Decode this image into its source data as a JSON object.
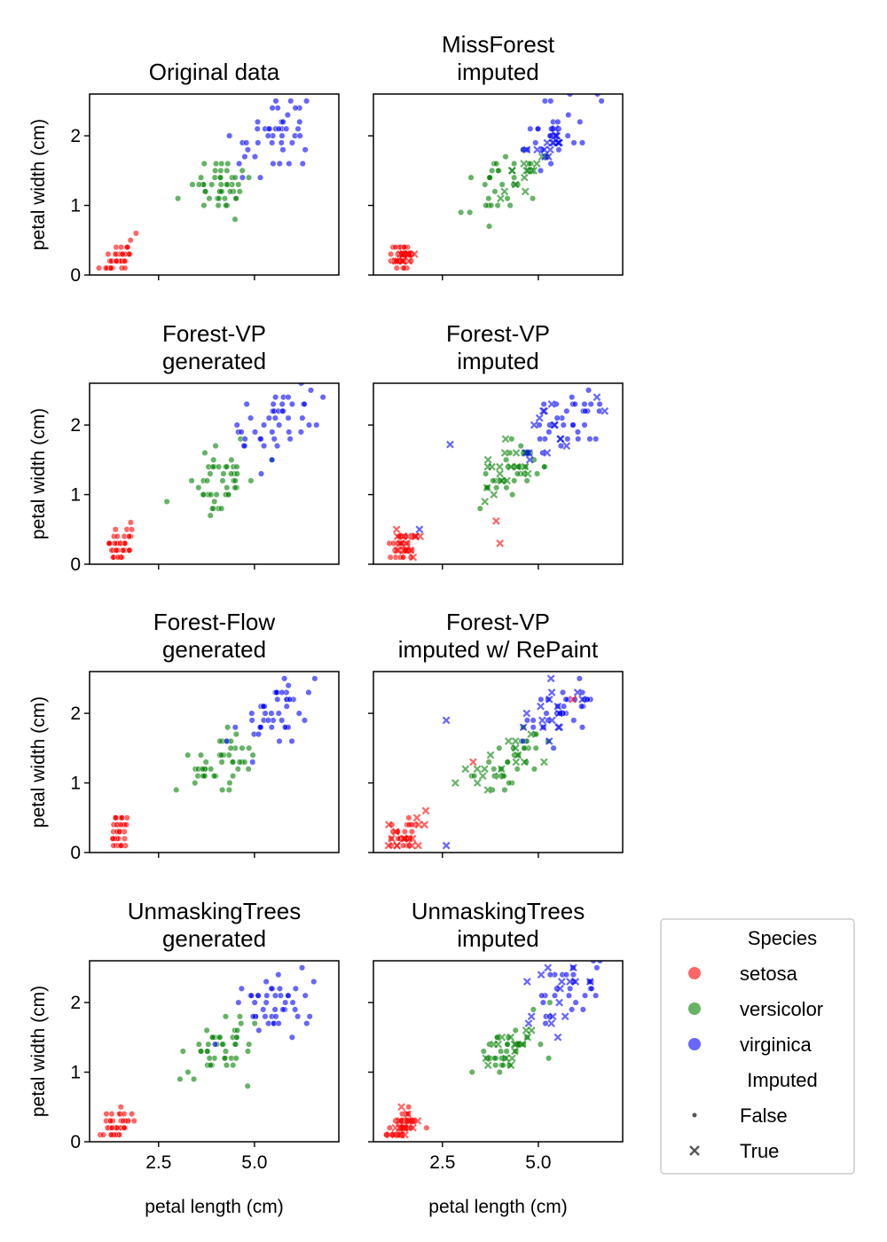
{
  "figure": {
    "axis_labels": {
      "x": "petal length (cm)",
      "y": "petal width (cm)"
    },
    "colors": {
      "setosa": "#ff0000",
      "versicolor": "#008000",
      "virginica": "#0000ff"
    }
  },
  "legend": {
    "species_title": "Species",
    "species": [
      {
        "name": "setosa",
        "color": "#ff0000"
      },
      {
        "name": "versicolor",
        "color": "#008000"
      },
      {
        "name": "virginica",
        "color": "#0000ff"
      }
    ],
    "imputed_title": "Imputed",
    "imputed": [
      {
        "name": "False",
        "marker": "dot"
      },
      {
        "name": "True",
        "marker": "x"
      }
    ]
  },
  "chart_data": [
    {
      "type": "scatter",
      "title": "Original data",
      "xlabel": "",
      "ylabel": "petal width (cm)",
      "xlim": [
        0.7,
        7.2
      ],
      "ylim": [
        0,
        2.6
      ],
      "xticks": [
        2.5,
        5.0
      ],
      "yticks": [
        0,
        1,
        2
      ],
      "clusters": [
        {
          "species": "setosa",
          "imputed": false,
          "n": 42,
          "cx": 1.45,
          "sx": 0.2,
          "cy": 0.25,
          "sy": 0.12,
          "seed": 11
        },
        {
          "species": "versicolor",
          "imputed": false,
          "n": 45,
          "cx": 4.2,
          "sx": 0.45,
          "cy": 1.3,
          "sy": 0.2,
          "seed": 12
        },
        {
          "species": "virginica",
          "imputed": false,
          "n": 45,
          "cx": 5.5,
          "sx": 0.5,
          "cy": 2.0,
          "sy": 0.25,
          "seed": 13
        }
      ]
    },
    {
      "type": "scatter",
      "title": "MissForest\nimputed",
      "xlabel": "",
      "ylabel": "",
      "xlim": [
        0.7,
        7.2
      ],
      "ylim": [
        0,
        2.6
      ],
      "xticks": [
        2.5,
        5.0
      ],
      "yticks": [
        0,
        1,
        2
      ],
      "clusters": [
        {
          "species": "setosa",
          "imputed": false,
          "n": 30,
          "cx": 1.45,
          "sx": 0.18,
          "cy": 0.25,
          "sy": 0.1,
          "seed": 21
        },
        {
          "species": "setosa",
          "imputed": true,
          "n": 14,
          "cx": 1.5,
          "sx": 0.12,
          "cy": 0.25,
          "sy": 0.06,
          "seed": 22
        },
        {
          "species": "versicolor",
          "imputed": false,
          "n": 32,
          "cx": 4.2,
          "sx": 0.45,
          "cy": 1.3,
          "sy": 0.2,
          "seed": 23
        },
        {
          "species": "versicolor",
          "imputed": true,
          "n": 14,
          "cx": 4.5,
          "sx": 0.3,
          "cy": 1.4,
          "sy": 0.1,
          "seed": 24
        },
        {
          "species": "virginica",
          "imputed": false,
          "n": 30,
          "cx": 5.6,
          "sx": 0.55,
          "cy": 2.1,
          "sy": 0.25,
          "seed": 25
        },
        {
          "species": "virginica",
          "imputed": true,
          "n": 16,
          "cx": 5.3,
          "sx": 0.3,
          "cy": 1.95,
          "sy": 0.12,
          "seed": 26
        }
      ]
    },
    {
      "type": "scatter",
      "title": "Forest-VP\ngenerated",
      "xlabel": "",
      "ylabel": "petal width (cm)",
      "xlim": [
        0.7,
        7.2
      ],
      "ylim": [
        0,
        2.6
      ],
      "xticks": [
        2.5,
        5.0
      ],
      "yticks": [
        0,
        1,
        2
      ],
      "clusters": [
        {
          "species": "setosa",
          "imputed": false,
          "n": 42,
          "cx": 1.45,
          "sx": 0.2,
          "cy": 0.25,
          "sy": 0.12,
          "seed": 31
        },
        {
          "species": "versicolor",
          "imputed": false,
          "n": 45,
          "cx": 4.1,
          "sx": 0.5,
          "cy": 1.25,
          "sy": 0.22,
          "seed": 32
        },
        {
          "species": "virginica",
          "imputed": false,
          "n": 45,
          "cx": 5.6,
          "sx": 0.55,
          "cy": 2.0,
          "sy": 0.25,
          "seed": 33
        }
      ]
    },
    {
      "type": "scatter",
      "title": "Forest-VP\nimputed",
      "xlabel": "",
      "ylabel": "",
      "xlim": [
        0.7,
        7.2
      ],
      "ylim": [
        0,
        2.6
      ],
      "xticks": [
        2.5,
        5.0
      ],
      "yticks": [
        0,
        1,
        2
      ],
      "clusters": [
        {
          "species": "setosa",
          "imputed": false,
          "n": 30,
          "cx": 1.45,
          "sx": 0.2,
          "cy": 0.25,
          "sy": 0.12,
          "seed": 41
        },
        {
          "species": "setosa",
          "imputed": true,
          "n": 16,
          "cx": 1.45,
          "sx": 0.25,
          "cy": 0.25,
          "sy": 0.12,
          "seed": 42
        },
        {
          "species": "versicolor",
          "imputed": false,
          "n": 32,
          "cx": 4.2,
          "sx": 0.45,
          "cy": 1.3,
          "sy": 0.2,
          "seed": 43
        },
        {
          "species": "versicolor",
          "imputed": true,
          "n": 18,
          "cx": 4.1,
          "sx": 0.5,
          "cy": 1.3,
          "sy": 0.2,
          "seed": 44
        },
        {
          "species": "virginica",
          "imputed": false,
          "n": 32,
          "cx": 5.7,
          "sx": 0.5,
          "cy": 2.05,
          "sy": 0.22,
          "seed": 45
        },
        {
          "species": "virginica",
          "imputed": true,
          "n": 16,
          "cx": 5.4,
          "sx": 0.45,
          "cy": 2.0,
          "sy": 0.2,
          "seed": 46
        }
      ],
      "extra_points": [
        {
          "species": "virginica",
          "imputed": true,
          "x": 2.7,
          "y": 1.72
        },
        {
          "species": "virginica",
          "imputed": true,
          "x": 1.9,
          "y": 0.5
        },
        {
          "species": "setosa",
          "imputed": true,
          "x": 3.9,
          "y": 0.62
        },
        {
          "species": "setosa",
          "imputed": true,
          "x": 4.0,
          "y": 0.3
        }
      ]
    },
    {
      "type": "scatter",
      "title": "Forest-Flow\ngenerated",
      "xlabel": "",
      "ylabel": "petal width (cm)",
      "xlim": [
        0.7,
        7.2
      ],
      "ylim": [
        0,
        2.6
      ],
      "xticks": [
        2.5,
        5.0
      ],
      "yticks": [
        0,
        1,
        2
      ],
      "clusters": [
        {
          "species": "setosa",
          "imputed": false,
          "n": 36,
          "cx": 1.45,
          "sx": 0.12,
          "cy": 0.3,
          "sy": 0.15,
          "seed": 51
        },
        {
          "species": "versicolor",
          "imputed": false,
          "n": 45,
          "cx": 4.1,
          "sx": 0.45,
          "cy": 1.25,
          "sy": 0.2,
          "seed": 52
        },
        {
          "species": "virginica",
          "imputed": false,
          "n": 45,
          "cx": 5.6,
          "sx": 0.5,
          "cy": 2.05,
          "sy": 0.25,
          "seed": 53
        }
      ]
    },
    {
      "type": "scatter",
      "title": "Forest-VP\nimputed w/ RePaint",
      "xlabel": "",
      "ylabel": "",
      "xlim": [
        0.7,
        7.2
      ],
      "ylim": [
        0,
        2.6
      ],
      "xticks": [
        2.5,
        5.0
      ],
      "yticks": [
        0,
        1,
        2
      ],
      "clusters": [
        {
          "species": "setosa",
          "imputed": false,
          "n": 30,
          "cx": 1.45,
          "sx": 0.2,
          "cy": 0.25,
          "sy": 0.12,
          "seed": 61
        },
        {
          "species": "setosa",
          "imputed": true,
          "n": 16,
          "cx": 1.5,
          "sx": 0.25,
          "cy": 0.25,
          "sy": 0.12,
          "seed": 62
        },
        {
          "species": "versicolor",
          "imputed": false,
          "n": 32,
          "cx": 4.2,
          "sx": 0.45,
          "cy": 1.3,
          "sy": 0.2,
          "seed": 63
        },
        {
          "species": "versicolor",
          "imputed": true,
          "n": 18,
          "cx": 4.1,
          "sx": 0.5,
          "cy": 1.3,
          "sy": 0.2,
          "seed": 64
        },
        {
          "species": "virginica",
          "imputed": false,
          "n": 32,
          "cx": 5.7,
          "sx": 0.5,
          "cy": 2.1,
          "sy": 0.22,
          "seed": 65
        },
        {
          "species": "virginica",
          "imputed": true,
          "n": 16,
          "cx": 5.4,
          "sx": 0.45,
          "cy": 2.0,
          "sy": 0.22,
          "seed": 66
        }
      ],
      "extra_points": [
        {
          "species": "virginica",
          "imputed": true,
          "x": 2.6,
          "y": 1.9
        },
        {
          "species": "virginica",
          "imputed": true,
          "x": 2.6,
          "y": 0.1
        },
        {
          "species": "setosa",
          "imputed": true,
          "x": 3.3,
          "y": 1.3
        },
        {
          "species": "setosa",
          "imputed": true,
          "x": 5.9,
          "y": 2.2
        }
      ]
    },
    {
      "type": "scatter",
      "title": "UnmaskingTrees\ngenerated",
      "xlabel": "petal length (cm)",
      "ylabel": "petal width (cm)",
      "xlim": [
        0.7,
        7.2
      ],
      "ylim": [
        0,
        2.6
      ],
      "xticks": [
        2.5,
        5.0
      ],
      "yticks": [
        0,
        1,
        2
      ],
      "clusters": [
        {
          "species": "setosa",
          "imputed": false,
          "n": 40,
          "cx": 1.45,
          "sx": 0.22,
          "cy": 0.22,
          "sy": 0.12,
          "seed": 71
        },
        {
          "species": "versicolor",
          "imputed": false,
          "n": 45,
          "cx": 4.1,
          "sx": 0.5,
          "cy": 1.3,
          "sy": 0.2,
          "seed": 72
        },
        {
          "species": "virginica",
          "imputed": false,
          "n": 45,
          "cx": 5.6,
          "sx": 0.55,
          "cy": 2.05,
          "sy": 0.25,
          "seed": 73
        }
      ]
    },
    {
      "type": "scatter",
      "title": "UnmaskingTrees\nimputed",
      "xlabel": "petal length (cm)",
      "ylabel": "",
      "xlim": [
        0.7,
        7.2
      ],
      "ylim": [
        0,
        2.6
      ],
      "xticks": [
        2.5,
        5.0
      ],
      "yticks": [
        0,
        1,
        2
      ],
      "clusters": [
        {
          "species": "setosa",
          "imputed": false,
          "n": 30,
          "cx": 1.45,
          "sx": 0.2,
          "cy": 0.22,
          "sy": 0.12,
          "seed": 81
        },
        {
          "species": "setosa",
          "imputed": true,
          "n": 18,
          "cx": 1.5,
          "sx": 0.15,
          "cy": 0.25,
          "sy": 0.1,
          "seed": 82
        },
        {
          "species": "versicolor",
          "imputed": false,
          "n": 32,
          "cx": 4.2,
          "sx": 0.45,
          "cy": 1.3,
          "sy": 0.18,
          "seed": 83
        },
        {
          "species": "versicolor",
          "imputed": true,
          "n": 16,
          "cx": 4.2,
          "sx": 0.4,
          "cy": 1.35,
          "sy": 0.15,
          "seed": 84
        },
        {
          "species": "virginica",
          "imputed": false,
          "n": 32,
          "cx": 5.8,
          "sx": 0.5,
          "cy": 2.15,
          "sy": 0.22,
          "seed": 85
        },
        {
          "species": "virginica",
          "imputed": true,
          "n": 16,
          "cx": 5.4,
          "sx": 0.4,
          "cy": 2.0,
          "sy": 0.25,
          "seed": 86
        }
      ]
    }
  ]
}
